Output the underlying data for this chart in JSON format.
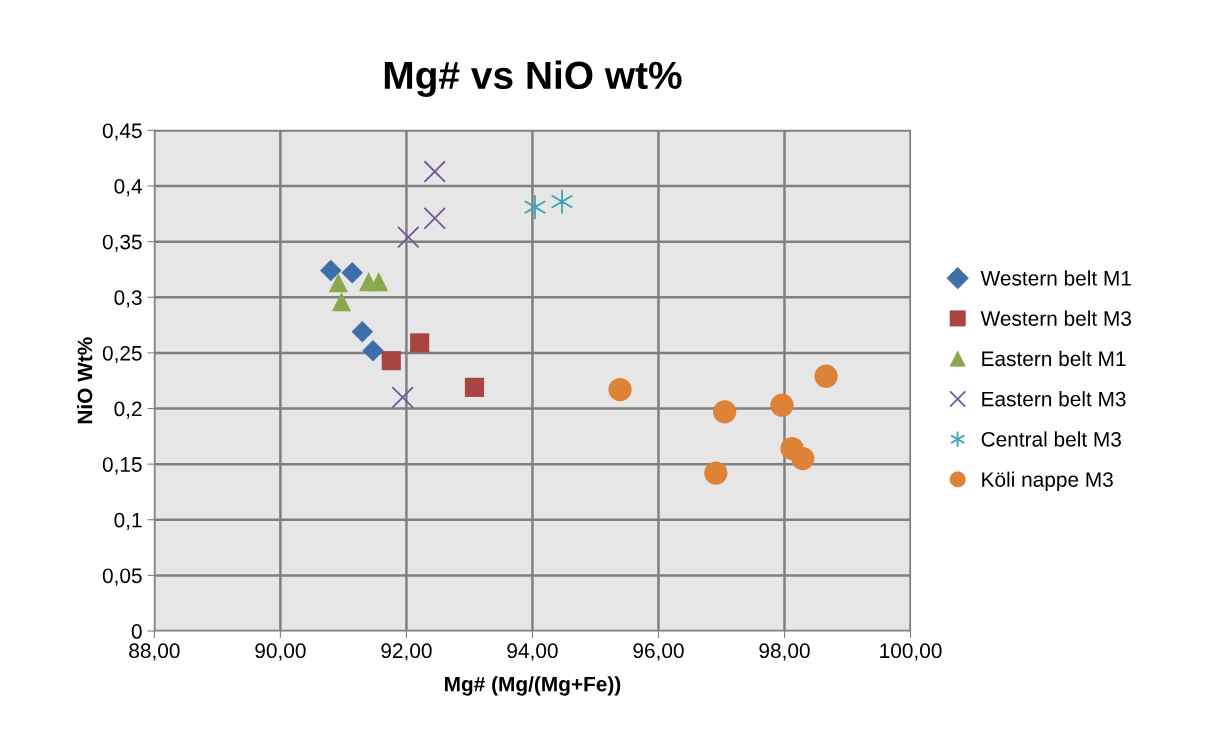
{
  "chart_data": {
    "type": "scatter",
    "title": "Mg# vs NiO wt%",
    "xlabel": "Mg# (Mg/(Mg+Fe))",
    "ylabel": "NiO Wt%",
    "xlim": [
      88,
      100
    ],
    "ylim": [
      0,
      0.45
    ],
    "xticks": [
      {
        "value": 88,
        "label": "88,00"
      },
      {
        "value": 90,
        "label": "90,00"
      },
      {
        "value": 92,
        "label": "92,00"
      },
      {
        "value": 94,
        "label": "94,00"
      },
      {
        "value": 96,
        "label": "96,00"
      },
      {
        "value": 98,
        "label": "98,00"
      },
      {
        "value": 100,
        "label": "100,00"
      }
    ],
    "yticks": [
      0,
      {
        "value": 0.05,
        "label": "0,05"
      },
      {
        "value": 0.1,
        "label": "0,1"
      },
      {
        "value": 0.15,
        "label": "0,15"
      },
      {
        "value": 0.2,
        "label": "0,2"
      },
      {
        "value": 0.25,
        "label": "0,25"
      },
      {
        "value": 0.3,
        "label": "0,3"
      },
      {
        "value": 0.35,
        "label": "0,35"
      },
      {
        "value": 0.4,
        "label": "0,4"
      },
      {
        "value": 0.45,
        "label": "0,45"
      }
    ],
    "grid": true,
    "legend": "right",
    "series": [
      {
        "name": "Western belt M1",
        "color": "#3f6faa",
        "marker": "diamond",
        "x": [
          90.8,
          91.14,
          91.3,
          91.47
        ],
        "values": [
          0.324,
          0.322,
          0.269,
          0.252
        ]
      },
      {
        "name": "Western belt M3",
        "color": "#a94442",
        "marker": "square",
        "x": [
          91.76,
          92.21,
          93.08
        ],
        "values": [
          0.243,
          0.259,
          0.219
        ]
      },
      {
        "name": "Eastern belt M1",
        "color": "#8aa84e",
        "marker": "triangle",
        "x": [
          90.92,
          90.97,
          91.4,
          91.56
        ],
        "values": [
          0.313,
          0.296,
          0.314,
          0.314
        ]
      },
      {
        "name": "Eastern belt M3",
        "color": "#71589a",
        "marker": "cross",
        "x": [
          92.45,
          92.45,
          92.03,
          91.94
        ],
        "values": [
          0.413,
          0.371,
          0.354,
          0.21
        ]
      },
      {
        "name": "Central belt M3",
        "color": "#3fa2b8",
        "marker": "cross",
        "x": [
          94.04,
          94.47
        ],
        "values": [
          0.381,
          0.386
        ]
      },
      {
        "name": "Köli nappe M3",
        "color": "#dc8338",
        "marker": "circle",
        "x": [
          95.39,
          97.05,
          97.96,
          98.66,
          98.12,
          98.29,
          96.91
        ],
        "values": [
          0.217,
          0.197,
          0.203,
          0.229,
          0.164,
          0.155,
          0.142
        ]
      }
    ]
  }
}
